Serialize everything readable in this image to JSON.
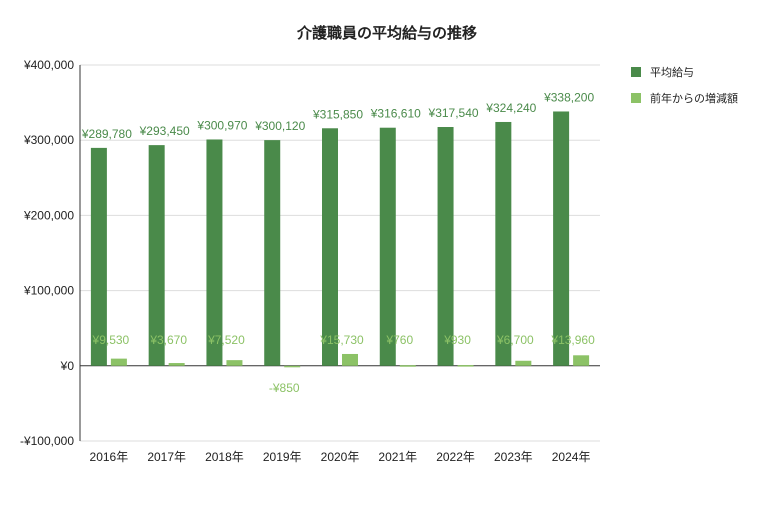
{
  "chart_data": {
    "type": "bar",
    "title": "介護職員の平均給与の推移",
    "categories": [
      "2016年",
      "2017年",
      "2018年",
      "2019年",
      "2020年",
      "2021年",
      "2022年",
      "2023年",
      "2024年"
    ],
    "series": [
      {
        "name": "平均給与",
        "color": "#4a8a4a",
        "values": [
          289780,
          293450,
          300970,
          300120,
          315850,
          316610,
          317540,
          324240,
          338200
        ],
        "labels": [
          "¥289,780",
          "¥293,450",
          "¥300,970",
          "¥300,120",
          "¥315,850",
          "¥316,610",
          "¥317,540",
          "¥324,240",
          "¥338,200"
        ]
      },
      {
        "name": "前年からの増減額",
        "color": "#8cc266",
        "values": [
          9530,
          3670,
          7520,
          -850,
          15730,
          760,
          930,
          6700,
          13960
        ],
        "labels": [
          "¥9,530",
          "¥3,670",
          "¥7,520",
          "-¥850",
          "¥15,730",
          "¥760",
          "¥930",
          "¥6,700",
          "¥13,960"
        ]
      }
    ],
    "ylim": [
      -100000,
      400000
    ],
    "yticks": [
      400000,
      300000,
      200000,
      100000,
      0,
      -100000
    ],
    "ytick_labels": [
      "¥400,000",
      "¥300,000",
      "¥200,000",
      "¥100,000",
      "¥0",
      "-¥100,000"
    ],
    "xlabel": "",
    "ylabel": "",
    "grid": true,
    "legend_position": "right"
  }
}
